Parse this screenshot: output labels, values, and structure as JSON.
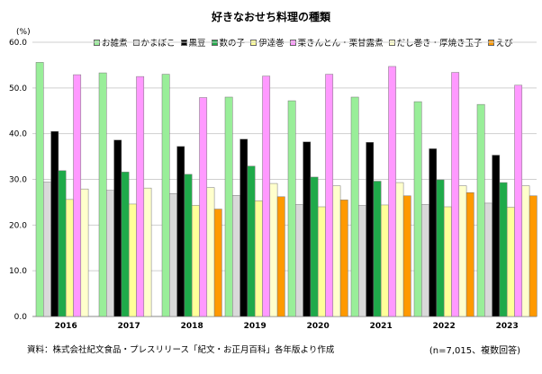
{
  "chart_data": {
    "type": "bar",
    "title": "好きなおせち料理の種類",
    "unit_label": "(%)",
    "xlabel": "",
    "ylabel": "",
    "ylim": [
      0,
      60
    ],
    "yticks": [
      "0.0",
      "10.0",
      "20.0",
      "30.0",
      "40.0",
      "50.0",
      "60.0"
    ],
    "categories": [
      "2016",
      "2017",
      "2018",
      "2019",
      "2020",
      "2021",
      "2022",
      "2023"
    ],
    "series": [
      {
        "name": "お雑煮",
        "color": "#99ee99",
        "values": [
          55.6,
          53.3,
          53.0,
          48.0,
          47.2,
          48.0,
          47.0,
          46.4
        ]
      },
      {
        "name": "かまぼこ",
        "color": "#d9d9d9",
        "values": [
          29.4,
          27.6,
          26.9,
          26.5,
          24.5,
          24.3,
          24.5,
          24.8
        ]
      },
      {
        "name": "黒豆",
        "color": "#000000",
        "values": [
          40.5,
          38.6,
          37.2,
          38.8,
          38.2,
          38.1,
          36.7,
          35.3
        ]
      },
      {
        "name": "数の子",
        "color": "#1faa4a",
        "values": [
          31.9,
          31.6,
          31.1,
          32.9,
          30.5,
          29.6,
          29.9,
          29.3
        ]
      },
      {
        "name": "伊達巻",
        "color": "#ffff99",
        "values": [
          25.6,
          24.6,
          24.3,
          25.3,
          24.0,
          24.4,
          24.0,
          23.9
        ]
      },
      {
        "name": "栗きんとん・栗甘露煮",
        "color": "#ff99ff",
        "values": [
          52.9,
          52.5,
          47.9,
          52.6,
          53.0,
          54.7,
          53.4,
          50.6
        ]
      },
      {
        "name": "だし巻き・厚焼き玉子",
        "color": "#ffffcc",
        "values": [
          27.9,
          28.1,
          28.2,
          29.1,
          28.6,
          29.3,
          28.6,
          28.6
        ]
      },
      {
        "name": "えび",
        "color": "#ff9900",
        "values": [
          0,
          0,
          23.5,
          26.2,
          25.5,
          26.4,
          27.1,
          26.4
        ]
      }
    ]
  },
  "footer": {
    "source": "資料：株式会社紀文食品・プレスリリース「紀文・お正月百科」各年版より作成",
    "sample": "(n=7,015、複数回答)"
  }
}
